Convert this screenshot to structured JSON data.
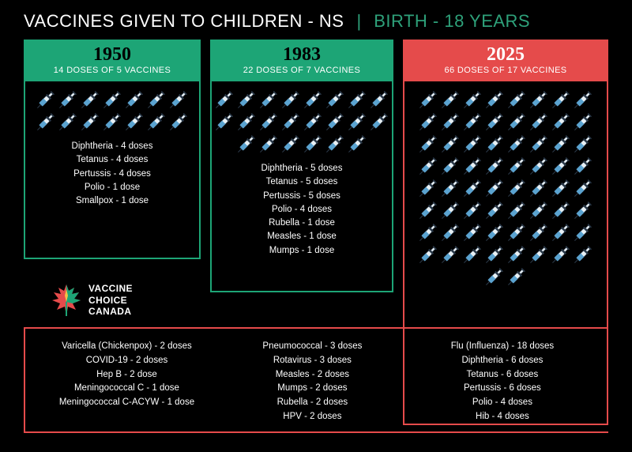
{
  "colors": {
    "bg": "#000000",
    "green": "#1da576",
    "red": "#e54b4b",
    "text": "#ffffff",
    "syringe_body": "#e8f0f4",
    "syringe_fluid": "#5aa3d0",
    "syringe_dark": "#2b3a4a"
  },
  "header": {
    "title": "VACCINES GIVEN TO CHILDREN - NS",
    "divider": "|",
    "age_range": "BIRTH - 18 YEARS"
  },
  "panels": [
    {
      "key": "1950",
      "year": "1950",
      "subtitle": "14 DOSES OF 5 VACCINES",
      "dose_count": 14,
      "rows": [
        7,
        7
      ],
      "style": "green",
      "doses": [
        "Diphtheria - 4 doses",
        "Tetanus - 4 doses",
        "Pertussis - 4 doses",
        "Polio - 1 dose",
        "Smallpox - 1 dose"
      ]
    },
    {
      "key": "1983",
      "year": "1983",
      "subtitle": "22 DOSES OF 7 VACCINES",
      "dose_count": 22,
      "rows": [
        8,
        8,
        6
      ],
      "style": "green",
      "doses": [
        "Diphtheria - 5 doses",
        "Tetanus - 5 doses",
        "Pertussis - 5 doses",
        "Polio - 4 doses",
        "Rubella - 1 dose",
        "Measles - 1 dose",
        "Mumps - 1 dose"
      ]
    },
    {
      "key": "2025",
      "year": "2025",
      "subtitle": "66 DOSES OF 17 VACCINES",
      "dose_count": 66,
      "rows": [
        8,
        8,
        8,
        8,
        8,
        8,
        8,
        8,
        2
      ],
      "style": "red",
      "doses": []
    }
  ],
  "bottom": {
    "col1": [
      "Varicella (Chickenpox) - 2 doses",
      "COVID-19 - 2 doses",
      "Hep B - 2 dose",
      "Meningococcal C - 1 dose",
      "Meningococcal C-ACYW - 1 dose"
    ],
    "col2": [
      "Pneumococcal - 3 doses",
      "Rotavirus - 3 doses",
      "Measles - 2 doses",
      "Mumps - 2 doses",
      "Rubella - 2 doses",
      "HPV - 2 doses"
    ],
    "col3": [
      "Flu (Influenza) - 18 doses",
      "Diphtheria - 6 doses",
      "Tetanus - 6 doses",
      "Pertussis - 6 doses",
      "Polio - 4 doses",
      "Hib - 4 doses"
    ]
  },
  "logo": {
    "line1": "VACCINE",
    "line2": "CHOICE",
    "line3": "CANADA"
  }
}
